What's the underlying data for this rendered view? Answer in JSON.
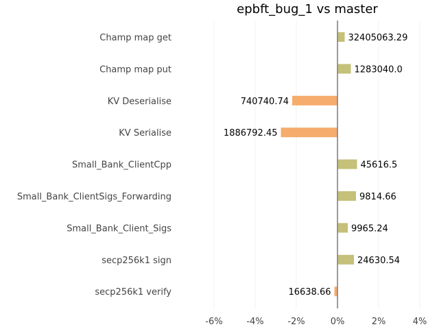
{
  "chart_data": {
    "type": "bar",
    "orientation": "horizontal",
    "title": "epbft_bug_1 vs master",
    "xlabel": "",
    "ylabel": "",
    "xlim": [
      -7,
      4
    ],
    "x_ticks": [
      -6,
      -4,
      -2,
      0,
      2,
      4
    ],
    "x_tick_labels": [
      "-6%",
      "-4%",
      "-2%",
      "0%",
      "2%",
      "4%"
    ],
    "grid": true,
    "colors": {
      "positive": "#c5c07a",
      "negative": "#f5ac6c",
      "zero_line": "#808080"
    },
    "categories": [
      "Champ map get",
      "Champ map put",
      "KV Deserialise",
      "KV Serialise",
      "Small_Bank_ClientCpp",
      "Small_Bank_ClientSigs_Forwarding",
      "Small_Bank_Client_Sigs",
      "secp256k1 sign",
      "secp256k1 verify"
    ],
    "values": [
      0.35,
      0.65,
      -2.2,
      -2.75,
      0.95,
      0.9,
      0.5,
      0.8,
      -0.15
    ],
    "value_labels": [
      "32405063.29",
      "1283040.0",
      "740740.74",
      "1886792.45",
      "45616.5",
      "9814.66",
      "9965.24",
      "24630.54",
      "16638.66"
    ]
  }
}
